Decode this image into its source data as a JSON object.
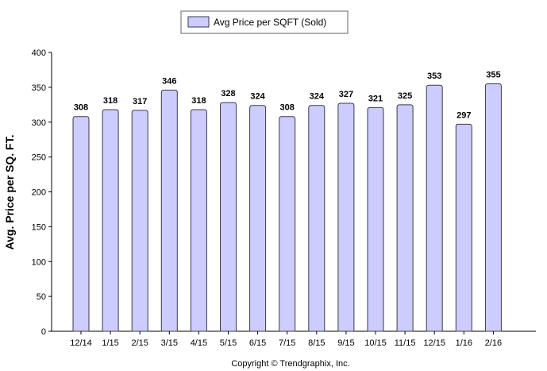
{
  "chart_data": {
    "type": "bar",
    "title": "",
    "xlabel": "",
    "ylabel": "Avg. Price per SQ. FT.",
    "legend": {
      "position": "top-center"
    },
    "grid": false,
    "ylim": [
      0,
      400
    ],
    "yticks": [
      0,
      50,
      100,
      150,
      200,
      250,
      300,
      350,
      400
    ],
    "categories": [
      "12/14",
      "1/15",
      "2/15",
      "3/15",
      "4/15",
      "5/15",
      "6/15",
      "7/15",
      "8/15",
      "9/15",
      "10/15",
      "11/15",
      "12/15",
      "1/16",
      "2/16"
    ],
    "series": [
      {
        "name": "Avg Price per SQFT (Sold)",
        "values": [
          308,
          318,
          317,
          346,
          318,
          328,
          324,
          308,
          324,
          327,
          321,
          325,
          353,
          297,
          355
        ]
      }
    ],
    "bar_color": "#ccccff",
    "bar_edge_color": "#3a3a4a"
  },
  "footer": {
    "copyright": "Copyright © Trendgraphix, Inc."
  }
}
